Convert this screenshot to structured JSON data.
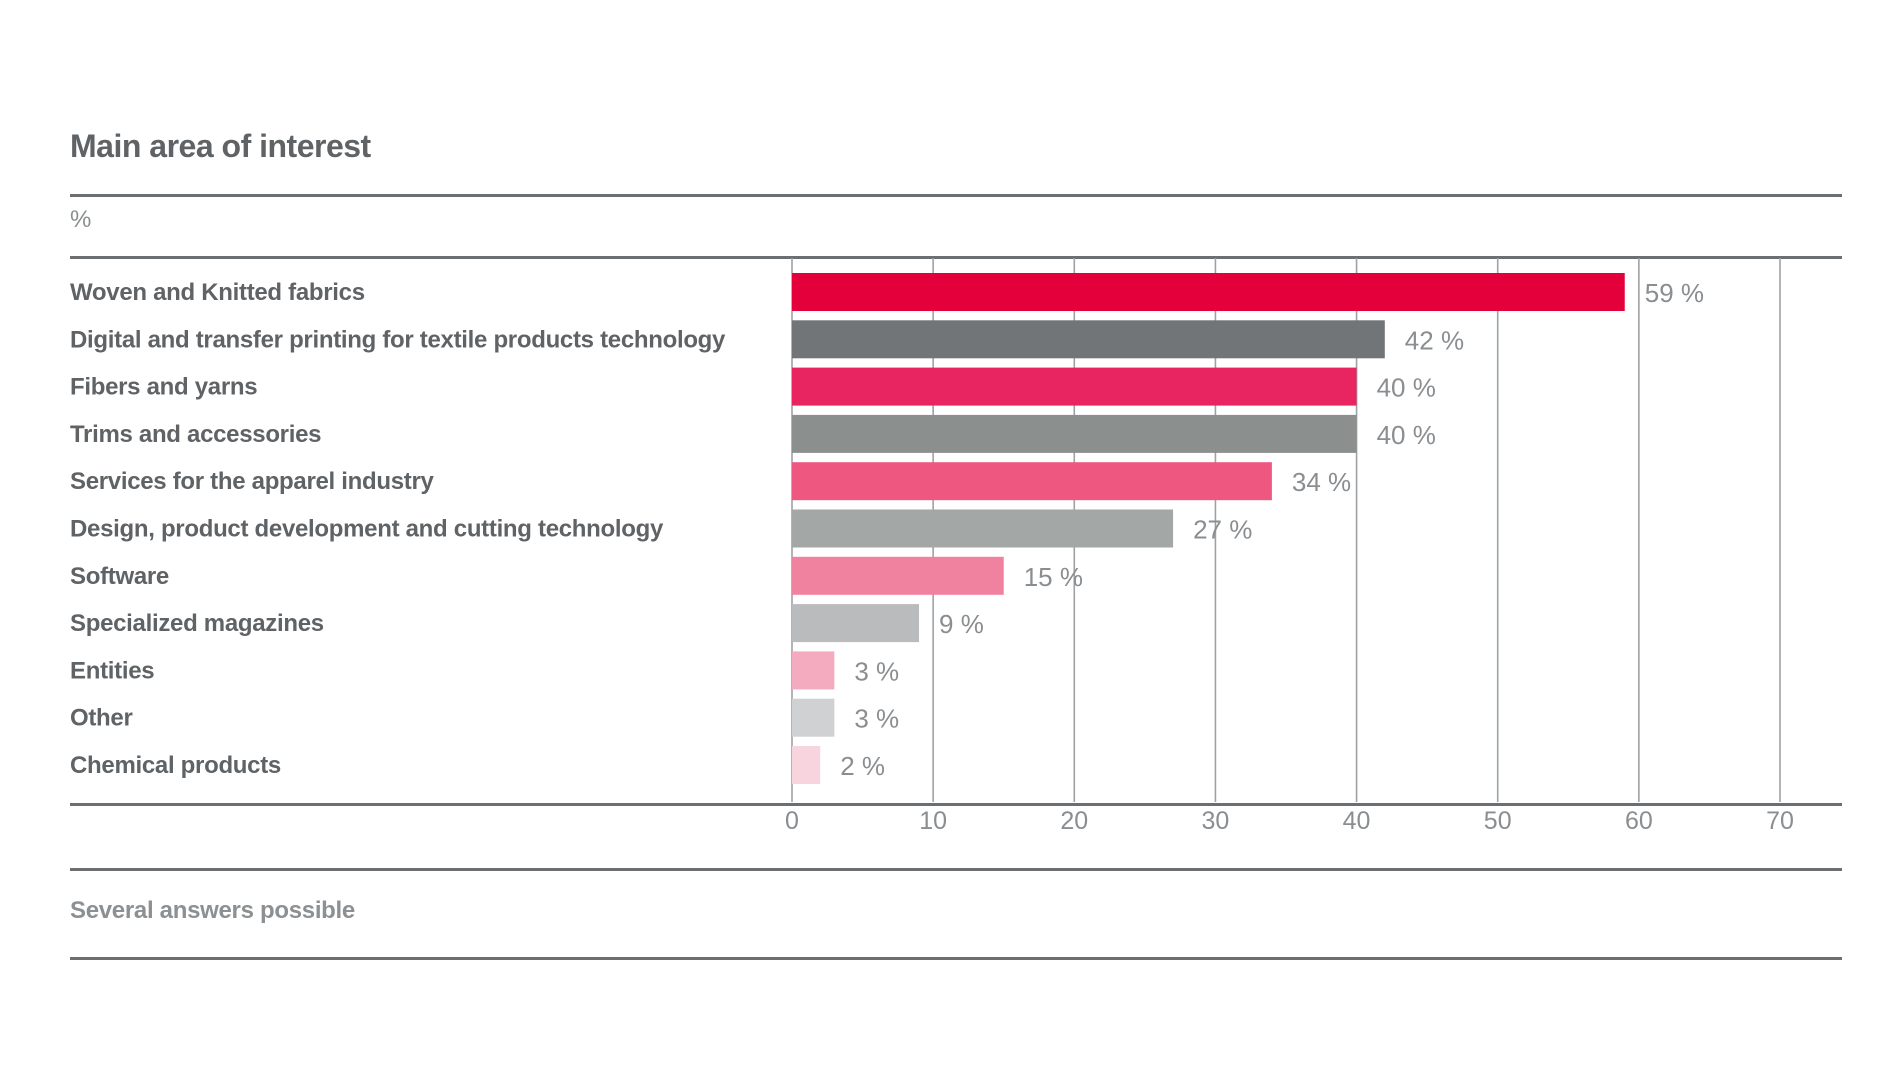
{
  "chart_data": {
    "type": "bar",
    "orientation": "horizontal",
    "title": "Main area of interest",
    "unit_label": "%",
    "categories": [
      "Woven and Knitted fabrics",
      "Digital and transfer printing for textile products technology",
      "Fibers and yarns",
      "Trims and accessories",
      "Services for the apparel industry",
      "Design, product development and cutting technology",
      "Software",
      "Specialized magazines",
      "Entities",
      "Other",
      "Chemical products"
    ],
    "values": [
      59,
      42,
      40,
      40,
      34,
      27,
      15,
      9,
      3,
      3,
      2
    ],
    "value_labels": [
      "59 %",
      "42 %",
      "40 %",
      "40 %",
      "34 %",
      "27 %",
      "15 %",
      "9 %",
      "3 %",
      "3 %",
      "2 %"
    ],
    "bar_colors": [
      "#e4003a",
      "#717578",
      "#e82560",
      "#8b8f8e",
      "#ee5780",
      "#a3a7a6",
      "#f0819f",
      "#b9bbbc",
      "#f4aabf",
      "#d0d1d3",
      "#f8d4de"
    ],
    "xlim": [
      0,
      70
    ],
    "xticks": [
      0,
      10,
      20,
      30,
      40,
      50,
      60,
      70
    ],
    "xtick_labels": [
      "0",
      "10",
      "20",
      "30",
      "40",
      "50",
      "60",
      "70"
    ],
    "grid": true,
    "footnote": "Several answers possible"
  }
}
